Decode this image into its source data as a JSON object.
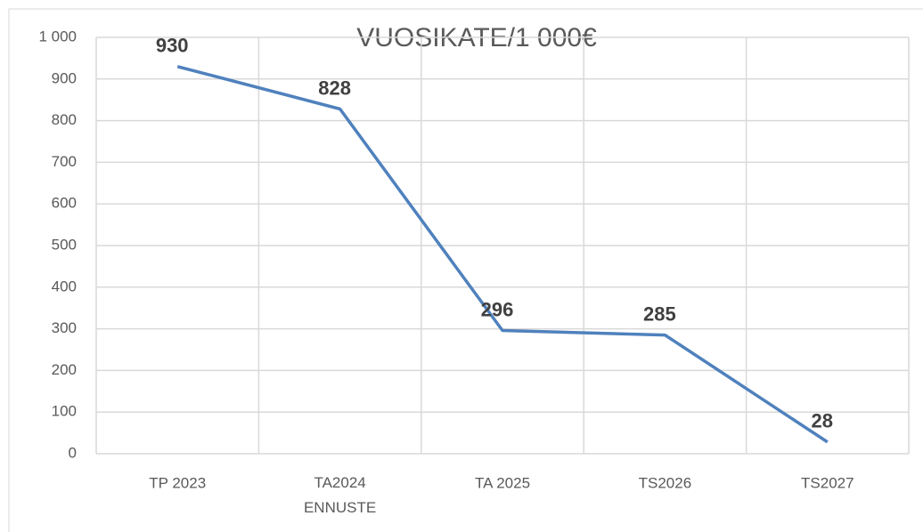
{
  "chart_data": {
    "type": "line",
    "title": "VUOSIKATE/1 000€",
    "categories": [
      "TP 2023",
      "TA2024\nENNUSTE",
      "TA 2025",
      "TS2026",
      "TS2027"
    ],
    "series": [
      {
        "name": "VUOSIKATE",
        "color": "#4f81bd",
        "values": [
          930,
          828,
          296,
          285,
          28
        ]
      }
    ],
    "ylim": [
      0,
      1000
    ],
    "yticks": [
      0,
      100,
      200,
      300,
      400,
      500,
      600,
      700,
      800,
      900,
      {
        "value": 1000,
        "label": "1 000"
      }
    ],
    "grid": true
  }
}
